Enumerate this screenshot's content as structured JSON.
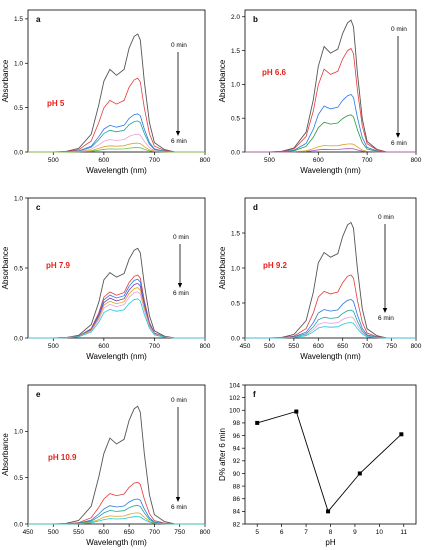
{
  "chart_data": [
    {
      "panel": "a",
      "type": "line",
      "label": "pH 5",
      "xlabel": "Wavelength (nm)",
      "ylabel": "Absorbance",
      "xlim": [
        450,
        800
      ],
      "ylim": [
        0,
        1.6
      ],
      "xticks": [
        500,
        600,
        700,
        800
      ],
      "yticks": [
        0.0,
        0.5,
        1.0,
        1.5
      ],
      "ytick_labels": [
        "0.0",
        "0.5",
        "1.0",
        "1.5"
      ],
      "annotation_top": "0 min",
      "annotation_bottom": "6 min",
      "peaks": [
        1.33,
        0.83,
        0.43,
        0.35,
        0.2,
        0.1,
        0.05
      ],
      "colors": [
        "#555555",
        "#e33b3b",
        "#2b78e4",
        "#1aa39a",
        "#e8a0d8",
        "#e0a020",
        "#66bb55"
      ],
      "x": [
        450,
        500,
        525,
        550,
        575,
        590,
        600,
        612,
        625,
        640,
        650,
        660,
        667,
        672,
        680,
        690,
        700,
        720,
        740,
        760,
        780,
        800
      ],
      "shape": [
        0.0,
        0.0,
        0.005,
        0.03,
        0.15,
        0.4,
        0.6,
        0.7,
        0.65,
        0.7,
        0.88,
        0.98,
        1.0,
        0.95,
        0.6,
        0.25,
        0.08,
        0.02,
        0.0,
        0.0,
        0.0,
        0.0
      ]
    },
    {
      "panel": "b",
      "type": "line",
      "label": "pH 6.6",
      "xlabel": "Wavelength (nm)",
      "ylabel": "Absorbance",
      "xlim": [
        450,
        800
      ],
      "ylim": [
        0,
        2.1
      ],
      "xticks": [
        500,
        600,
        700,
        800
      ],
      "yticks": [
        0.0,
        0.5,
        1.0,
        1.5,
        2.0
      ],
      "ytick_labels": [
        "0.0",
        "0.5",
        "1.0",
        "1.5",
        "2.0"
      ],
      "annotation_top": "0 min",
      "annotation_bottom": "6 min",
      "peaks": [
        1.95,
        1.53,
        0.85,
        0.55,
        0.12,
        0.05
      ],
      "colors": [
        "#555555",
        "#e33b3b",
        "#2b78e4",
        "#2b9a3f",
        "#e0a020",
        "#9b59b6"
      ],
      "x": [
        450,
        500,
        525,
        550,
        575,
        590,
        600,
        612,
        625,
        640,
        650,
        660,
        667,
        672,
        680,
        690,
        700,
        720,
        740,
        760,
        780,
        800
      ],
      "shape": [
        0.0,
        0.0,
        0.005,
        0.03,
        0.15,
        0.4,
        0.65,
        0.8,
        0.75,
        0.78,
        0.9,
        0.98,
        1.0,
        0.95,
        0.6,
        0.25,
        0.08,
        0.02,
        0.0,
        0.0,
        0.0,
        0.0
      ]
    },
    {
      "panel": "c",
      "type": "line",
      "label": "pH 7.9",
      "xlabel": "Wavelength (nm)",
      "ylabel": "Absorbance",
      "xlim": [
        450,
        800
      ],
      "ylim": [
        0,
        1.0
      ],
      "xticks": [
        500,
        600,
        700,
        800
      ],
      "yticks": [
        0.0,
        0.5,
        1.0
      ],
      "ytick_labels": [
        "0.0",
        "0.5",
        "1.0"
      ],
      "annotation_top": "0 min",
      "annotation_bottom": "6 min",
      "peaks": [
        0.64,
        0.45,
        0.42,
        0.39,
        0.36,
        0.33,
        0.28
      ],
      "colors": [
        "#555555",
        "#e33b3b",
        "#2b78e4",
        "#6a3fb5",
        "#e0a020",
        "#e8a0d8",
        "#1ec8d8"
      ],
      "x": [
        450,
        500,
        525,
        550,
        575,
        590,
        600,
        612,
        625,
        640,
        650,
        660,
        667,
        672,
        680,
        690,
        700,
        720,
        740,
        760,
        780,
        800
      ],
      "shape": [
        0.0,
        0.0,
        0.005,
        0.03,
        0.15,
        0.4,
        0.65,
        0.73,
        0.68,
        0.72,
        0.88,
        0.98,
        1.0,
        0.95,
        0.6,
        0.25,
        0.08,
        0.02,
        0.0,
        0.0,
        0.0,
        0.0
      ]
    },
    {
      "panel": "d",
      "type": "line",
      "label": "pH 9.2",
      "xlabel": "Wavelength (nm)",
      "ylabel": "Absorbance",
      "xlim": [
        450,
        800
      ],
      "ylim": [
        0,
        2.0
      ],
      "xticks": [
        450,
        500,
        550,
        600,
        650,
        700,
        750,
        800
      ],
      "yticks": [
        0.0,
        0.5,
        1.0,
        1.5
      ],
      "ytick_labels": [
        "0.0",
        "0.5",
        "1.0",
        "1.5"
      ],
      "annotation_top": "0 min",
      "annotation_bottom": "6 min",
      "peaks": [
        1.65,
        0.9,
        0.55,
        0.4,
        0.3,
        0.22
      ],
      "colors": [
        "#555555",
        "#e33b3b",
        "#2b78e4",
        "#1aa39a",
        "#e8a0d8",
        "#1ec8d8"
      ],
      "x": [
        450,
        500,
        525,
        550,
        575,
        590,
        600,
        612,
        625,
        640,
        650,
        660,
        667,
        672,
        680,
        690,
        700,
        720,
        740,
        760,
        780,
        800
      ],
      "shape": [
        0.0,
        0.0,
        0.005,
        0.03,
        0.15,
        0.4,
        0.65,
        0.74,
        0.7,
        0.73,
        0.88,
        0.98,
        1.0,
        0.95,
        0.6,
        0.25,
        0.08,
        0.02,
        0.0,
        0.0,
        0.0,
        0.0
      ]
    },
    {
      "panel": "e",
      "type": "line",
      "label": "pH 10.9",
      "xlabel": "Wavelength (nm)",
      "ylabel": "Absorbance",
      "xlim": [
        450,
        800
      ],
      "ylim": [
        0,
        1.5
      ],
      "xticks": [
        450,
        500,
        550,
        600,
        650,
        700,
        750,
        800
      ],
      "yticks": [
        0.0,
        0.5,
        1.0
      ],
      "ytick_labels": [
        "0.0",
        "0.5",
        "1.0"
      ],
      "annotation_top": "0 min",
      "annotation_bottom": "6 min",
      "peaks": [
        1.27,
        0.45,
        0.27,
        0.2,
        0.12,
        0.08
      ],
      "colors": [
        "#555555",
        "#e33b3b",
        "#2b78e4",
        "#1aa39a",
        "#e0a020",
        "#1ec8d8"
      ],
      "x": [
        450,
        500,
        525,
        550,
        575,
        590,
        600,
        612,
        625,
        640,
        650,
        660,
        667,
        672,
        680,
        690,
        700,
        720,
        740,
        760,
        780,
        800
      ],
      "shape": [
        0.0,
        0.0,
        0.005,
        0.03,
        0.15,
        0.4,
        0.6,
        0.73,
        0.68,
        0.72,
        0.88,
        0.98,
        1.0,
        0.95,
        0.6,
        0.25,
        0.08,
        0.02,
        0.0,
        0.0,
        0.0,
        0.0
      ]
    },
    {
      "panel": "f",
      "type": "line",
      "xlabel": "pH",
      "ylabel": "D% after 6 min",
      "xlim": [
        4.5,
        11.5
      ],
      "ylim": [
        82,
        104
      ],
      "xticks": [
        5,
        6,
        7,
        8,
        9,
        10,
        11
      ],
      "yticks": [
        82,
        84,
        86,
        88,
        90,
        92,
        94,
        96,
        98,
        100,
        102,
        104
      ],
      "x": [
        5,
        6.6,
        7.9,
        9.2,
        10.9
      ],
      "y": [
        98.0,
        99.8,
        84.0,
        90.0,
        96.2
      ],
      "color": "#000000"
    }
  ]
}
